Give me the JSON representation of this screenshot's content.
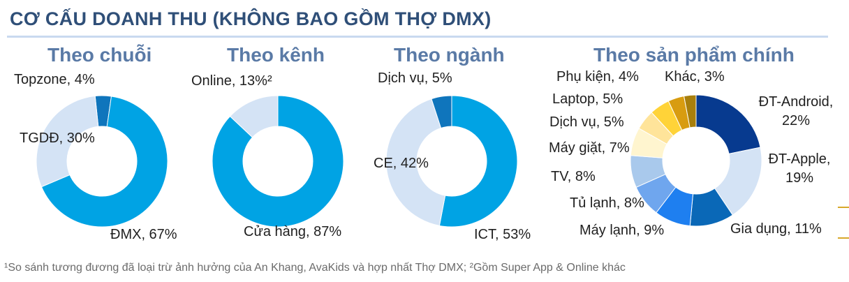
{
  "page_title": "CƠ CẤU DOANH THU (KHÔNG BAO GỒM THỢ DMX)",
  "footnote": "¹So sánh tương đương đã loại trừ ảnh hưởng của An Khang, AvaKids và hợp nhất Thợ DMX; ²Gồm Super App & Online khác",
  "chart_data": [
    {
      "type": "pie",
      "donut": true,
      "title": "Theo chuỗi",
      "slices": [
        {
          "label": "Topzone, 4%",
          "value": 4,
          "color": "#0f75bc"
        },
        {
          "label": "ĐMX, 67%",
          "value": 67,
          "color": "#00a3e4"
        },
        {
          "label": "TGDĐ, 30%",
          "value": 30,
          "color": "#d4e3f5"
        }
      ]
    },
    {
      "type": "pie",
      "donut": true,
      "title": "Theo kênh",
      "slices": [
        {
          "label": "Cửa hàng, 87%",
          "value": 87,
          "color": "#00a3e4"
        },
        {
          "label": "Online, 13%²",
          "value": 13,
          "color": "#d4e3f5"
        }
      ]
    },
    {
      "type": "pie",
      "donut": true,
      "title": "Theo ngành",
      "slices": [
        {
          "label": "ICT, 53%",
          "value": 53,
          "color": "#00a3e4"
        },
        {
          "label": "CE, 42%",
          "value": 42,
          "color": "#d4e3f5"
        },
        {
          "label": "Dịch vụ, 5%",
          "value": 5,
          "color": "#0f75bc"
        }
      ]
    },
    {
      "type": "pie",
      "donut": true,
      "title": "Theo sản phẩm chính",
      "slices": [
        {
          "label": "ĐT-Android,\n22%",
          "value": 22,
          "color": "#073a8f"
        },
        {
          "label": "ĐT-Apple,\n19%",
          "value": 19,
          "color": "#d4e3f5"
        },
        {
          "label": "Gia dụng, 11%",
          "value": 11,
          "color": "#0a68b7"
        },
        {
          "label": "Máy lạnh, 9%",
          "value": 9,
          "color": "#1e7ff0"
        },
        {
          "label": "Tủ lạnh, 8%",
          "value": 8,
          "color": "#6fa6ee"
        },
        {
          "label": "TV, 8%",
          "value": 8,
          "color": "#a9c9ec"
        },
        {
          "label": "Máy giặt, 7%",
          "value": 7,
          "color": "#fff5cf"
        },
        {
          "label": "Dịch vụ, 5%",
          "value": 5,
          "color": "#ffe49a"
        },
        {
          "label": "Laptop, 5%",
          "value": 5,
          "color": "#ffd338"
        },
        {
          "label": "Phụ kiện, 4%",
          "value": 4,
          "color": "#d89c10"
        },
        {
          "label": "Khác, 3%",
          "value": 3,
          "color": "#a87f0c"
        }
      ]
    }
  ]
}
